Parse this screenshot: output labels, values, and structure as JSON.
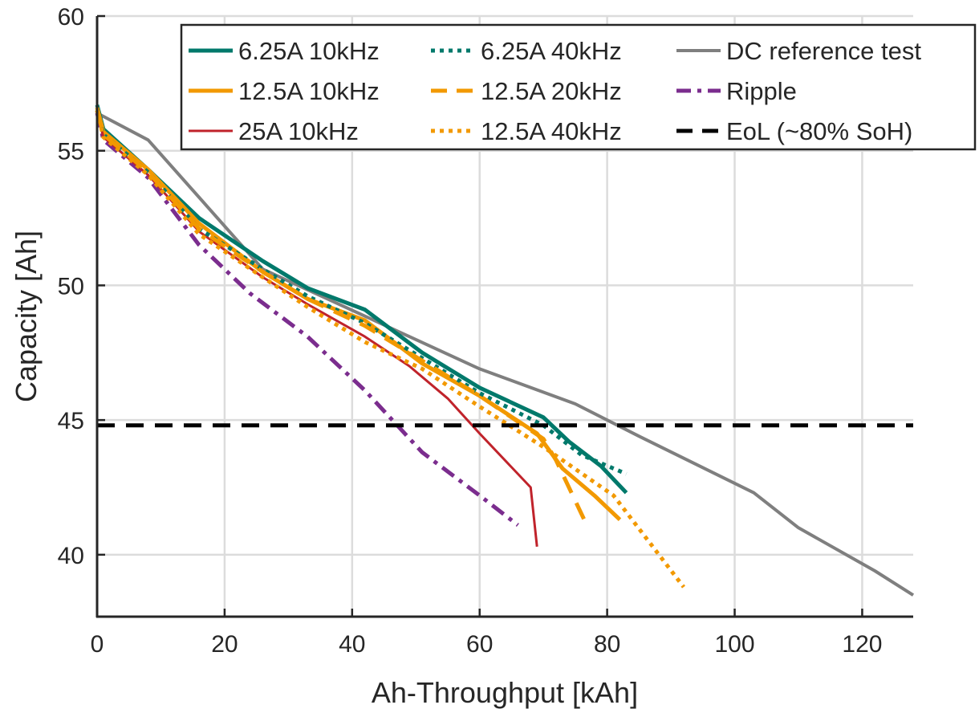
{
  "chart_data": {
    "type": "line",
    "title": "",
    "xlabel": "Ah-Throughput [kAh]",
    "ylabel": "Capacity [Ah]",
    "xlim": [
      0,
      128
    ],
    "ylim": [
      37.7,
      60
    ],
    "x_ticks": [
      "0",
      "20",
      "40",
      "60",
      "80",
      "100",
      "120"
    ],
    "y_ticks": [
      "40",
      "45",
      "50",
      "55",
      "60"
    ],
    "grid": true,
    "legend_position": "top-right",
    "legend_columns": 3,
    "series": [
      {
        "name": "6.25A 10kHz",
        "color": "#00796B",
        "style": "solid",
        "width": 5,
        "x": [
          0,
          1,
          8,
          16,
          26,
          33,
          42,
          51,
          60,
          70,
          74,
          79,
          83
        ],
        "y": [
          56.7,
          55.8,
          54.3,
          52.5,
          50.9,
          49.9,
          49.1,
          47.5,
          46.2,
          45.1,
          44.2,
          43.3,
          42.3
        ]
      },
      {
        "name": "12.5A 10kHz",
        "color": "#F29900",
        "style": "solid",
        "width": 5,
        "x": [
          0,
          1,
          8,
          16,
          26,
          33,
          42,
          51,
          60,
          69,
          73,
          78,
          82
        ],
        "y": [
          56.6,
          55.7,
          54.3,
          52.3,
          50.5,
          49.5,
          48.7,
          47.1,
          45.9,
          44.5,
          43.2,
          42.2,
          41.3
        ]
      },
      {
        "name": "25A 10kHz",
        "color": "#C0232B",
        "style": "solid",
        "width": 3,
        "x": [
          0,
          1,
          8,
          16,
          26,
          33,
          42,
          49,
          55,
          60,
          68,
          69
        ],
        "y": [
          56.4,
          55.5,
          54.1,
          52.0,
          50.3,
          49.3,
          48.1,
          47.0,
          45.8,
          44.5,
          42.5,
          40.3
        ]
      },
      {
        "name": "6.25A 40kHz",
        "color": "#00796B",
        "style": "dotted",
        "width": 5,
        "x": [
          0,
          1,
          8,
          16,
          26,
          33,
          42,
          51,
          60,
          70,
          76,
          83
        ],
        "y": [
          56.5,
          55.6,
          54.2,
          52.1,
          50.6,
          49.6,
          48.6,
          47.3,
          46.0,
          44.8,
          43.7,
          43.0
        ]
      },
      {
        "name": "12.5A 20kHz",
        "color": "#F29900",
        "style": "dashed",
        "width": 5,
        "x": [
          0,
          1,
          8,
          16,
          26,
          33,
          42,
          51,
          60,
          70,
          72,
          77
        ],
        "y": [
          56.5,
          55.6,
          54.2,
          52.1,
          50.5,
          49.5,
          48.5,
          47.2,
          45.9,
          44.3,
          43.5,
          41.0
        ]
      },
      {
        "name": "12.5A 40kHz",
        "color": "#F29900",
        "style": "dotted",
        "width": 5,
        "x": [
          0,
          1,
          8,
          16,
          26,
          33,
          42,
          51,
          60,
          70,
          81,
          92
        ],
        "y": [
          56.5,
          55.5,
          54.1,
          51.9,
          50.3,
          49.2,
          47.9,
          46.9,
          45.5,
          44.0,
          42.2,
          38.8
        ]
      },
      {
        "name": "DC reference test",
        "color": "#7F7F7F",
        "style": "solid",
        "width": 4,
        "x": [
          0,
          8,
          26,
          60,
          75,
          85,
          103,
          110,
          122,
          128
        ],
        "y": [
          56.4,
          55.4,
          50.6,
          46.9,
          45.6,
          44.4,
          42.3,
          41.0,
          39.4,
          38.5
        ]
      },
      {
        "name": "Ripple",
        "color": "#7B2D8E",
        "style": "dashdot",
        "width": 5,
        "x": [
          0,
          1,
          8,
          16,
          24,
          33,
          42,
          51,
          60,
          66
        ],
        "y": [
          56.4,
          55.4,
          54.0,
          51.5,
          49.7,
          48.1,
          46.1,
          43.8,
          42.2,
          41.1
        ]
      },
      {
        "name": "EoL (~80% SoH)",
        "color": "#000000",
        "style": "dashed",
        "width": 5,
        "x": [
          0,
          128
        ],
        "y": [
          44.8,
          44.8
        ]
      }
    ]
  }
}
